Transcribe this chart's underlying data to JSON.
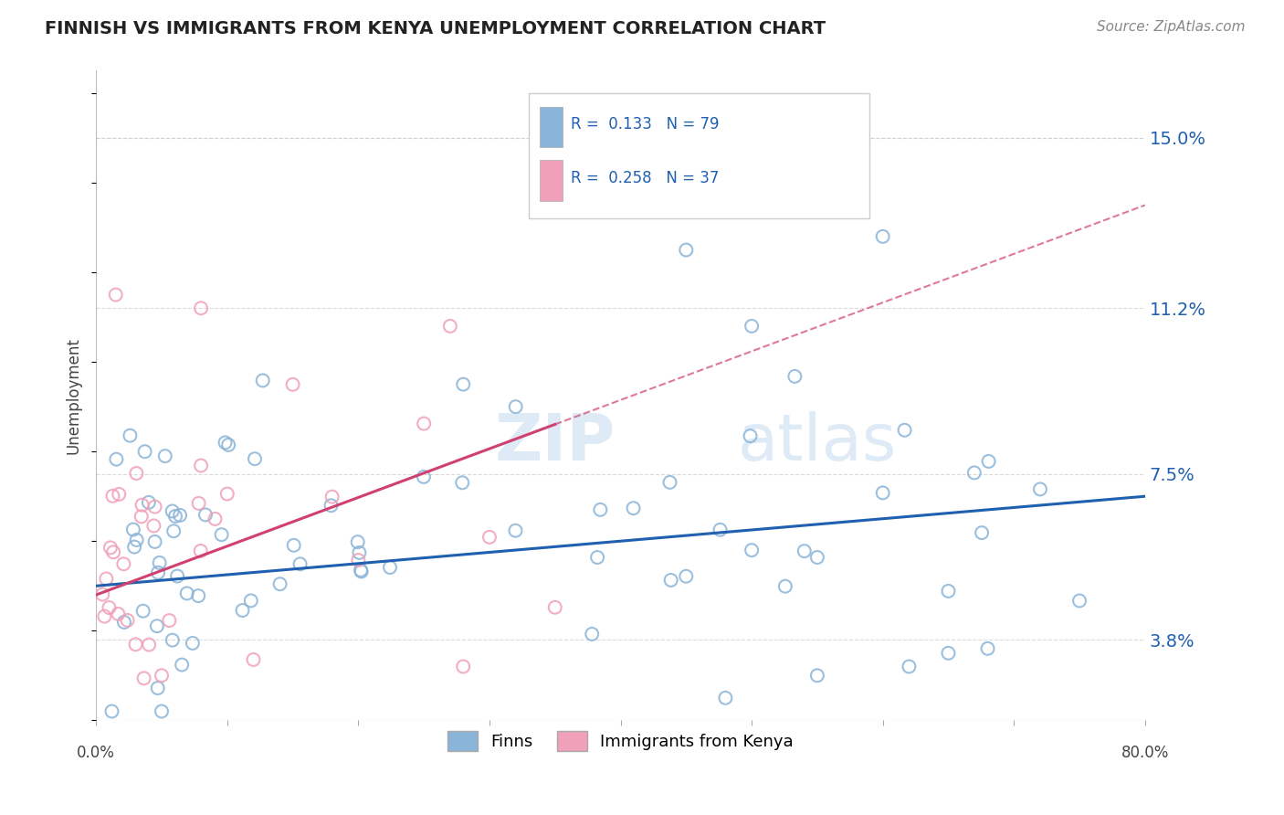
{
  "title": "FINNISH VS IMMIGRANTS FROM KENYA UNEMPLOYMENT CORRELATION CHART",
  "source": "Source: ZipAtlas.com",
  "ylabel_ticks": [
    3.8,
    7.5,
    11.2,
    15.0
  ],
  "xlim": [
    0.0,
    80.0
  ],
  "ylim": [
    2.0,
    16.5
  ],
  "finn_color": "#8ab4d8",
  "kenya_color": "#f0a0b8",
  "finn_line_color": "#2060b0",
  "kenya_line_color": "#d04070",
  "legend_finn_R": "0.133",
  "legend_finn_N": "79",
  "legend_kenya_R": "0.258",
  "legend_kenya_N": "37",
  "watermark_color": "#c8dff0",
  "background_color": "#ffffff",
  "grid_color": "#cccccc"
}
